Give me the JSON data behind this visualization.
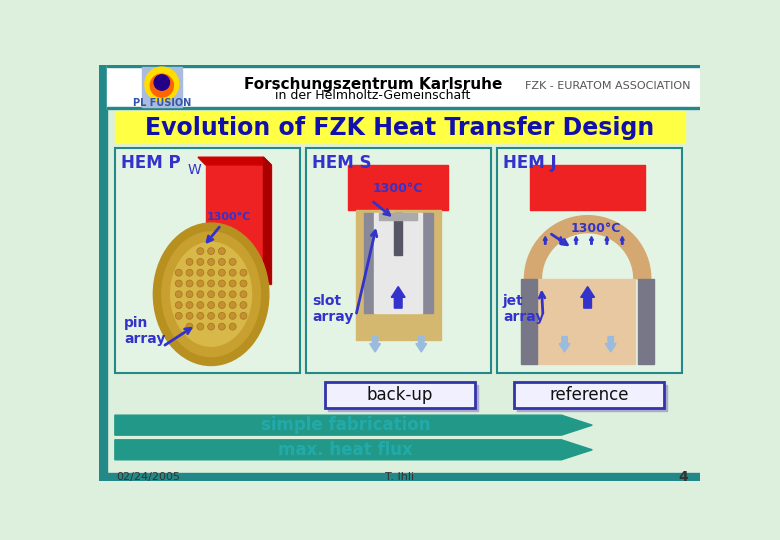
{
  "title": "Evolution of FZK Heat Transfer Design",
  "header_title": "Forschungszentrum Karlsruhe",
  "header_subtitle": "in der Helmholtz-Gemeinschaft",
  "header_right": "FZK - EURATOM ASSOCIATION",
  "header_left": "PL FUSION",
  "bg_color": "#ddf0dd",
  "header_bg": "#ffffff",
  "title_bg": "#ffff44",
  "title_color": "#1111aa",
  "border_color": "#228888",
  "hem_p_label": "HEM P",
  "hem_s_label": "HEM S",
  "hem_j_label": "HEM J",
  "pin_array": "pin\narray",
  "slot_array": "slot\narray",
  "jet_array": "jet\narray",
  "temp_label": "1300°C",
  "backup_label": "back-up",
  "reference_label": "reference",
  "simple_fab": "simple fabrication",
  "max_heat": "max. heat flux",
  "date": "02/24/2005",
  "author": "T. Ihli",
  "page": "4",
  "arrow_color": "#3333cc",
  "light_arrow_color": "#99bbdd",
  "box_border": "#3333aa",
  "red_color": "#ee2222",
  "tan_color": "#d4a870",
  "gray_color": "#777788",
  "panel_bg": "#e4f4e4",
  "teal_arrow": "#229988",
  "w_label": "W"
}
